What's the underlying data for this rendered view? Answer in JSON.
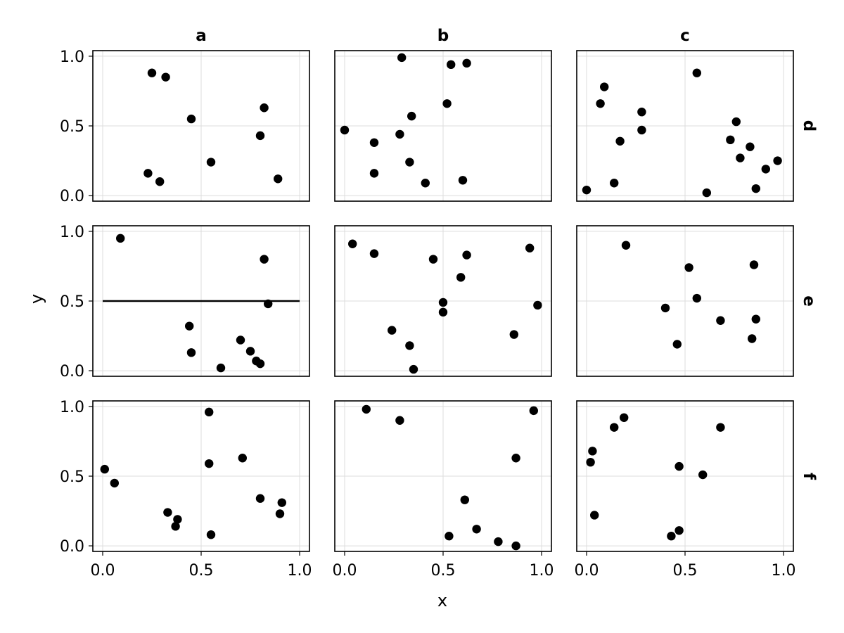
{
  "chart_data": {
    "type": "scatter",
    "title": "",
    "xlabel": "x",
    "ylabel": "y",
    "xlim": [
      -0.05,
      1.05
    ],
    "ylim": [
      -0.04,
      1.04
    ],
    "xticks": [
      0.0,
      0.5,
      1.0
    ],
    "yticks": [
      0.0,
      0.5,
      1.0
    ],
    "xtick_labels": [
      "0.0",
      "0.5",
      "1.0"
    ],
    "ytick_labels": [
      "0.0",
      "0.5",
      "1.0"
    ],
    "grid": true,
    "col_facets": [
      "a",
      "b",
      "c"
    ],
    "row_facets": [
      "d",
      "e",
      "f"
    ],
    "colors": {
      "points": "#000000",
      "grid": "#dcdcdc",
      "frame": "#000000"
    },
    "panels": [
      {
        "col": "a",
        "row": "d",
        "points": [
          [
            0.25,
            0.88
          ],
          [
            0.32,
            0.85
          ],
          [
            0.45,
            0.55
          ],
          [
            0.55,
            0.24
          ],
          [
            0.23,
            0.16
          ],
          [
            0.29,
            0.1
          ],
          [
            0.8,
            0.43
          ],
          [
            0.82,
            0.63
          ],
          [
            0.89,
            0.12
          ]
        ]
      },
      {
        "col": "b",
        "row": "d",
        "points": [
          [
            0.0,
            0.47
          ],
          [
            0.15,
            0.38
          ],
          [
            0.15,
            0.16
          ],
          [
            0.28,
            0.44
          ],
          [
            0.29,
            0.99
          ],
          [
            0.33,
            0.24
          ],
          [
            0.34,
            0.57
          ],
          [
            0.41,
            0.09
          ],
          [
            0.52,
            0.66
          ],
          [
            0.54,
            0.94
          ],
          [
            0.6,
            0.11
          ],
          [
            0.62,
            0.95
          ]
        ]
      },
      {
        "col": "c",
        "row": "d",
        "points": [
          [
            0.0,
            0.04
          ],
          [
            0.07,
            0.66
          ],
          [
            0.09,
            0.78
          ],
          [
            0.14,
            0.09
          ],
          [
            0.17,
            0.39
          ],
          [
            0.28,
            0.6
          ],
          [
            0.28,
            0.47
          ],
          [
            0.56,
            0.88
          ],
          [
            0.61,
            0.02
          ],
          [
            0.73,
            0.4
          ],
          [
            0.76,
            0.53
          ],
          [
            0.78,
            0.27
          ],
          [
            0.83,
            0.35
          ],
          [
            0.86,
            0.05
          ],
          [
            0.91,
            0.19
          ],
          [
            0.97,
            0.25
          ]
        ]
      },
      {
        "col": "a",
        "row": "e",
        "hline": 0.5,
        "hline_xrange": [
          0.0,
          1.0
        ],
        "points": [
          [
            0.09,
            0.95
          ],
          [
            0.44,
            0.32
          ],
          [
            0.45,
            0.13
          ],
          [
            0.6,
            0.02
          ],
          [
            0.7,
            0.22
          ],
          [
            0.75,
            0.14
          ],
          [
            0.78,
            0.07
          ],
          [
            0.8,
            0.05
          ],
          [
            0.82,
            0.8
          ],
          [
            0.84,
            0.48
          ]
        ]
      },
      {
        "col": "b",
        "row": "e",
        "points": [
          [
            0.04,
            0.91
          ],
          [
            0.15,
            0.84
          ],
          [
            0.24,
            0.29
          ],
          [
            0.33,
            0.18
          ],
          [
            0.35,
            0.01
          ],
          [
            0.45,
            0.8
          ],
          [
            0.5,
            0.49
          ],
          [
            0.5,
            0.42
          ],
          [
            0.59,
            0.67
          ],
          [
            0.62,
            0.83
          ],
          [
            0.86,
            0.26
          ],
          [
            0.94,
            0.88
          ],
          [
            0.98,
            0.47
          ]
        ]
      },
      {
        "col": "c",
        "row": "e",
        "points": [
          [
            0.2,
            0.9
          ],
          [
            0.4,
            0.45
          ],
          [
            0.46,
            0.19
          ],
          [
            0.52,
            0.74
          ],
          [
            0.56,
            0.52
          ],
          [
            0.68,
            0.36
          ],
          [
            0.84,
            0.23
          ],
          [
            0.85,
            0.76
          ],
          [
            0.86,
            0.37
          ]
        ]
      },
      {
        "col": "a",
        "row": "f",
        "points": [
          [
            0.01,
            0.55
          ],
          [
            0.06,
            0.45
          ],
          [
            0.33,
            0.24
          ],
          [
            0.38,
            0.19
          ],
          [
            0.37,
            0.14
          ],
          [
            0.54,
            0.96
          ],
          [
            0.54,
            0.59
          ],
          [
            0.55,
            0.08
          ],
          [
            0.71,
            0.63
          ],
          [
            0.8,
            0.34
          ],
          [
            0.9,
            0.23
          ],
          [
            0.91,
            0.31
          ]
        ]
      },
      {
        "col": "b",
        "row": "f",
        "points": [
          [
            0.11,
            0.98
          ],
          [
            0.28,
            0.9
          ],
          [
            0.53,
            0.07
          ],
          [
            0.61,
            0.33
          ],
          [
            0.67,
            0.12
          ],
          [
            0.78,
            0.03
          ],
          [
            0.87,
            0.63
          ],
          [
            0.87,
            0.0
          ],
          [
            0.96,
            0.97
          ]
        ]
      },
      {
        "col": "c",
        "row": "f",
        "points": [
          [
            0.02,
            0.6
          ],
          [
            0.03,
            0.68
          ],
          [
            0.04,
            0.22
          ],
          [
            0.14,
            0.85
          ],
          [
            0.19,
            0.92
          ],
          [
            0.43,
            0.07
          ],
          [
            0.47,
            0.57
          ],
          [
            0.47,
            0.11
          ],
          [
            0.59,
            0.51
          ],
          [
            0.68,
            0.85
          ]
        ]
      }
    ]
  }
}
